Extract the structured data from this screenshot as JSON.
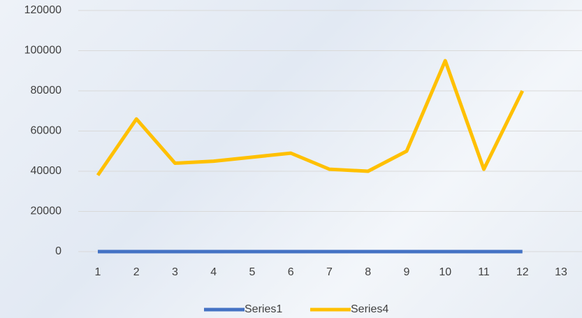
{
  "chart_data": {
    "type": "line",
    "categories": [
      "1",
      "2",
      "3",
      "4",
      "5",
      "6",
      "7",
      "8",
      "9",
      "10",
      "11",
      "12",
      "13"
    ],
    "series": [
      {
        "name": "Series1",
        "color": "#4472c4",
        "values": [
          0,
          0,
          0,
          0,
          0,
          0,
          0,
          0,
          0,
          0,
          0,
          0,
          null
        ]
      },
      {
        "name": "Series4",
        "color": "#ffc000",
        "values": [
          38000,
          66000,
          44000,
          45000,
          47000,
          49000,
          41000,
          40000,
          50000,
          95000,
          41000,
          80000,
          null
        ]
      }
    ],
    "ylim": [
      0,
      120000
    ],
    "yticks": [
      0,
      20000,
      40000,
      60000,
      80000,
      100000,
      120000
    ],
    "grid": true,
    "legend": "bottom"
  }
}
